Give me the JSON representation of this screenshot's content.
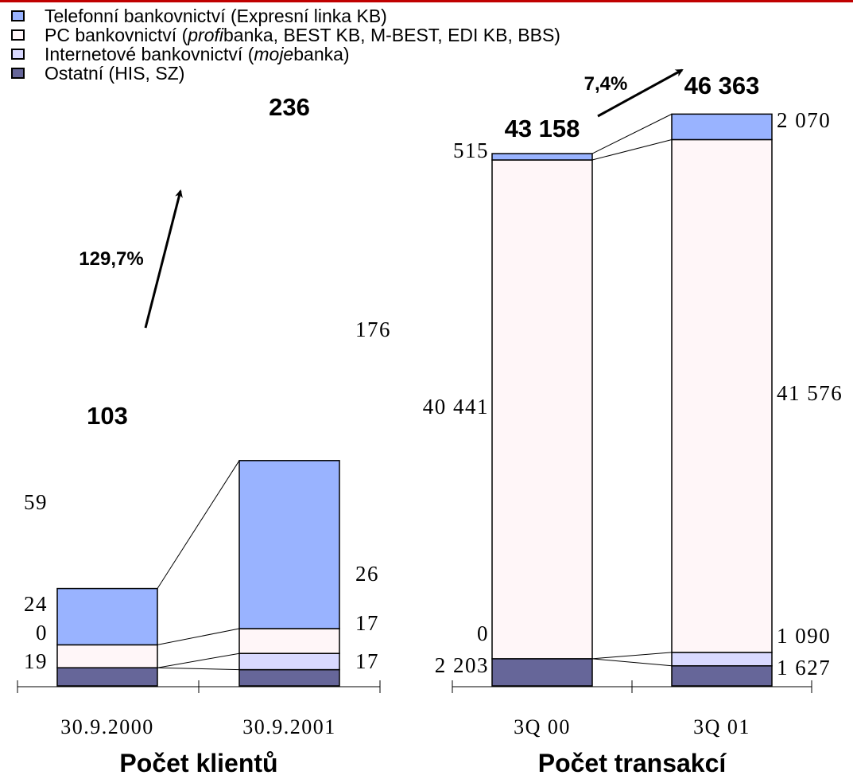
{
  "colors": {
    "telefonni": "#99b3ff",
    "pc": "#fff6f8",
    "internet": "#d9d9ff",
    "ostatni": "#666699",
    "accent_line": "#c00000"
  },
  "legend": [
    {
      "key": "telefonni",
      "parts": [
        {
          "text": "Telefonní bankovnictví (Expresní linka KB)",
          "italic": false
        }
      ]
    },
    {
      "key": "pc",
      "parts": [
        {
          "text": "PC bankovnictví (",
          "italic": false
        },
        {
          "text": "profi",
          "italic": true
        },
        {
          "text": "banka, BEST KB, M-BEST, EDI KB, BBS)",
          "italic": false
        }
      ]
    },
    {
      "key": "internet",
      "parts": [
        {
          "text": "Internetové bankovnictví (",
          "italic": false
        },
        {
          "text": "moje",
          "italic": true
        },
        {
          "text": "banka)",
          "italic": false
        }
      ]
    },
    {
      "key": "ostatni",
      "parts": [
        {
          "text": "Ostatní (HIS, SZ)",
          "italic": false
        }
      ]
    }
  ],
  "chart_data": [
    {
      "type": "bar",
      "stacked": true,
      "title": "Počet klientů",
      "categories": [
        "30.9.2000",
        "30.9.2001"
      ],
      "totals": [
        "103",
        "236"
      ],
      "growth_label": "129,7%",
      "series": [
        {
          "name": "Ostatní (HIS, SZ)",
          "key": "ostatni",
          "values": [
            19,
            17
          ],
          "labels": [
            "19",
            "17"
          ]
        },
        {
          "name": "Internetové bankovnictví (mojebanka)",
          "key": "internet",
          "values": [
            0,
            17
          ],
          "labels": [
            "0",
            "17"
          ]
        },
        {
          "name": "PC bankovnictví (profibanka, BEST KB, M-BEST, EDI KB, BBS)",
          "key": "pc",
          "values": [
            24,
            26
          ],
          "labels": [
            "24",
            "26"
          ]
        },
        {
          "name": "Telefonní bankovnictví (Expresní linka KB)",
          "key": "telefonni",
          "values": [
            59,
            176
          ],
          "labels": [
            "59",
            "176"
          ]
        }
      ]
    },
    {
      "type": "bar",
      "stacked": true,
      "title": "Počet transakcí",
      "categories": [
        "3Q 00",
        "3Q 01"
      ],
      "totals": [
        "43 158",
        "46 363"
      ],
      "growth_label": "7,4%",
      "series": [
        {
          "name": "Ostatní (HIS, SZ)",
          "key": "ostatni",
          "values": [
            2203,
            1627
          ],
          "labels": [
            "2 203",
            "1 627"
          ]
        },
        {
          "name": "Internetové bankovnictví (mojebanka)",
          "key": "internet",
          "values": [
            0,
            1090
          ],
          "labels": [
            "0",
            "1 090"
          ]
        },
        {
          "name": "PC bankovnictví (profibanka, BEST KB, M-BEST, EDI KB, BBS)",
          "key": "pc",
          "values": [
            40441,
            41576
          ],
          "labels": [
            "40 441",
            "41 576"
          ]
        },
        {
          "name": "Telefonní bankovnictví (Expresní linka KB)",
          "key": "telefonni",
          "values": [
            515,
            2070
          ],
          "labels": [
            "515",
            "2 070"
          ]
        }
      ]
    }
  ]
}
